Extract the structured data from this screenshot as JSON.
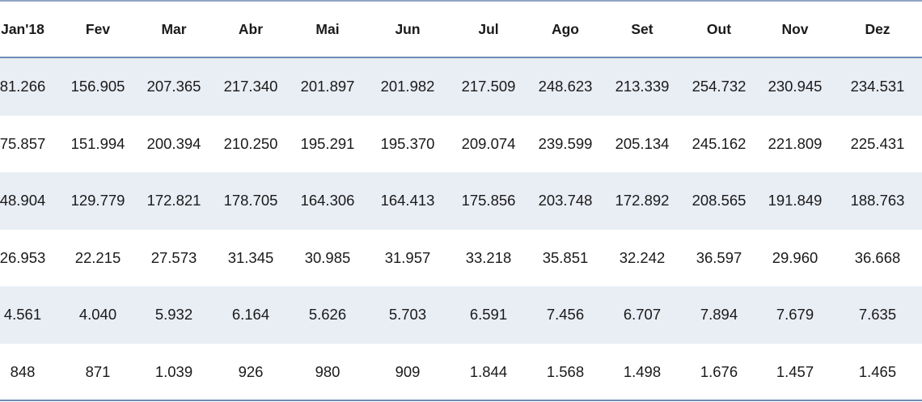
{
  "table": {
    "header": [
      "Jan'18",
      "Fev",
      "Mar",
      "Abr",
      "Mai",
      "Jun",
      "Jul",
      "Ago",
      "Set",
      "Out",
      "Nov",
      "Dez"
    ],
    "rows": [
      [
        "81.266",
        "156.905",
        "207.365",
        "217.340",
        "201.897",
        "201.982",
        "217.509",
        "248.623",
        "213.339",
        "254.732",
        "230.945",
        "234.531"
      ],
      [
        "75.857",
        "151.994",
        "200.394",
        "210.250",
        "195.291",
        "195.370",
        "209.074",
        "239.599",
        "205.134",
        "245.162",
        "221.809",
        "225.431"
      ],
      [
        "48.904",
        "129.779",
        "172.821",
        "178.705",
        "164.306",
        "164.413",
        "175.856",
        "203.748",
        "172.892",
        "208.565",
        "191.849",
        "188.763"
      ],
      [
        "26.953",
        "22.215",
        "27.573",
        "31.345",
        "30.985",
        "31.957",
        "33.218",
        "35.851",
        "32.242",
        "36.597",
        "29.960",
        "36.668"
      ],
      [
        "4.561",
        "4.040",
        "5.932",
        "6.164",
        "5.626",
        "5.703",
        "6.591",
        "7.456",
        "6.707",
        "7.894",
        "7.679",
        "7.635"
      ],
      [
        "848",
        "871",
        "1.039",
        "926",
        "980",
        "909",
        "1.844",
        "1.568",
        "1.498",
        "1.676",
        "1.457",
        "1.465"
      ]
    ]
  }
}
